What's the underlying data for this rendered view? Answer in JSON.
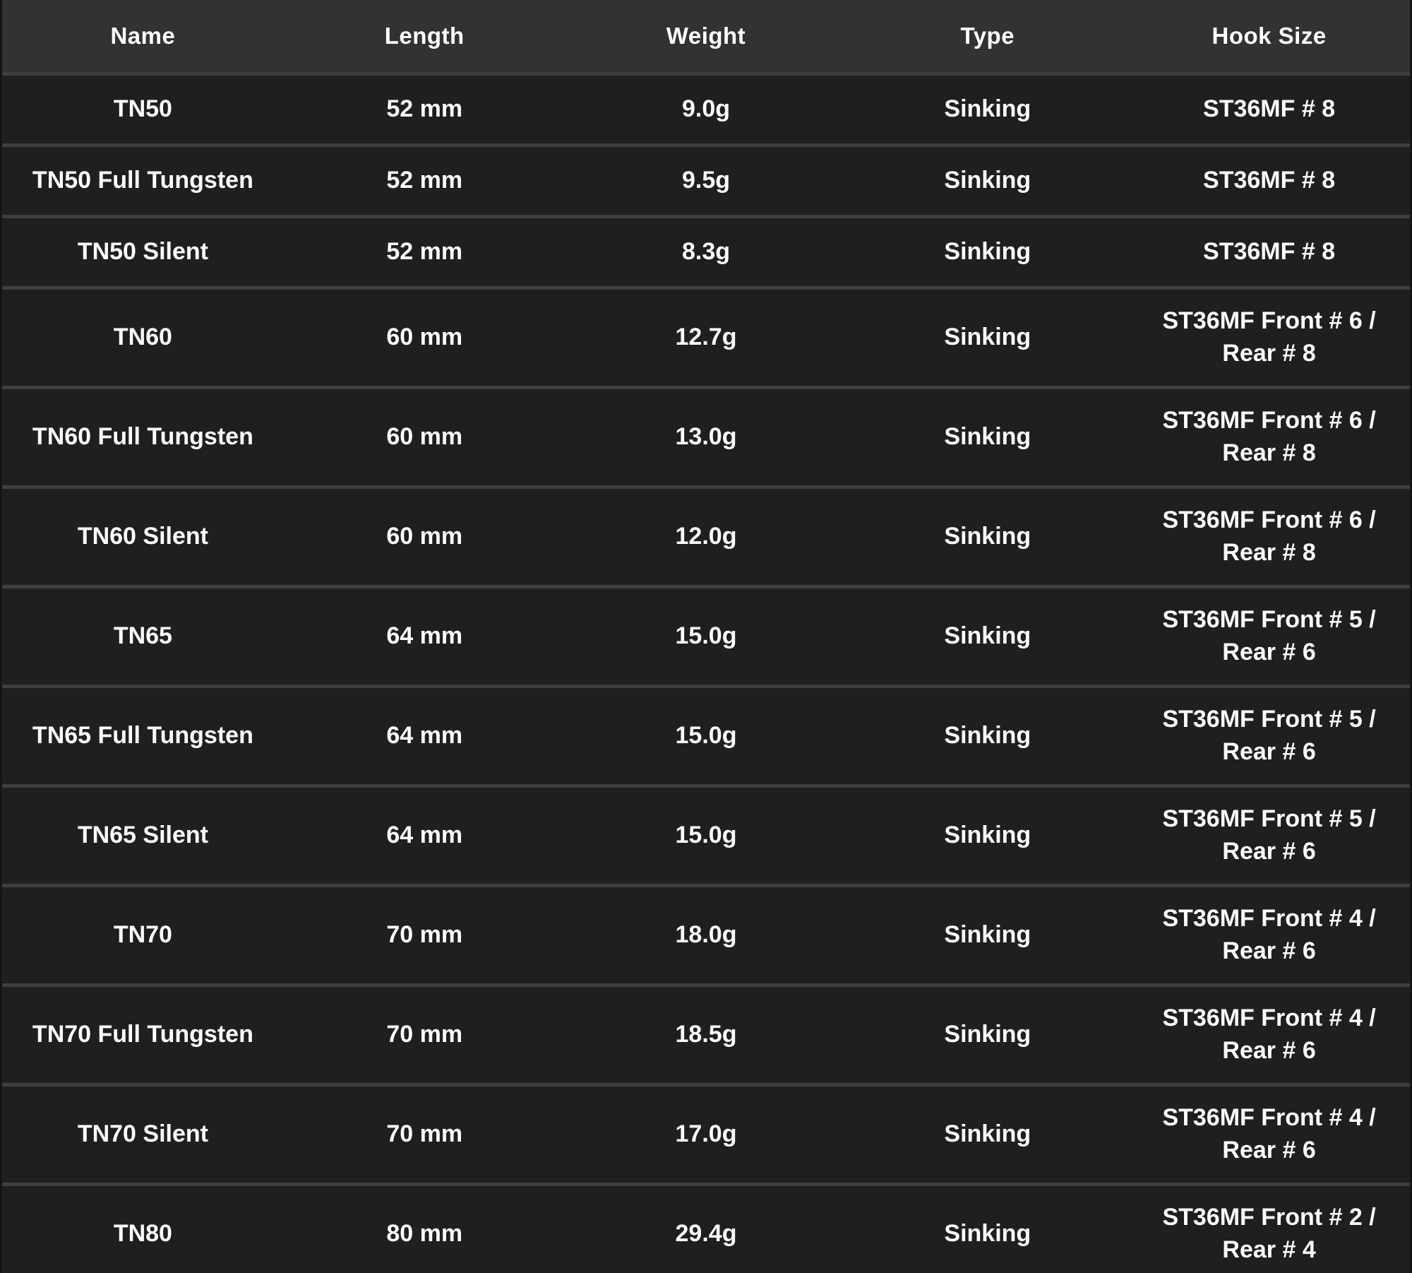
{
  "colors": {
    "header_bg": "#323235",
    "row_bg": "#1f1f22",
    "divider": "#3e3e41",
    "text": "#ffffff",
    "outer_border": "#141416"
  },
  "table": {
    "columns": [
      "Name",
      "Length",
      "Weight",
      "Type",
      "Hook Size"
    ],
    "rows": [
      {
        "name": "TN50",
        "length": "52 mm",
        "weight": "9.0g",
        "type": "Sinking",
        "hook": "ST36MF # 8"
      },
      {
        "name": "TN50 Full Tungsten",
        "length": "52 mm",
        "weight": "9.5g",
        "type": "Sinking",
        "hook": "ST36MF # 8"
      },
      {
        "name": "TN50 Silent",
        "length": "52 mm",
        "weight": "8.3g",
        "type": "Sinking",
        "hook": "ST36MF # 8"
      },
      {
        "name": "TN60",
        "length": "60 mm",
        "weight": "12.7g",
        "type": "Sinking",
        "hook": "ST36MF Front # 6 /\nRear # 8"
      },
      {
        "name": "TN60 Full Tungsten",
        "length": "60 mm",
        "weight": "13.0g",
        "type": "Sinking",
        "hook": "ST36MF Front # 6 /\nRear # 8"
      },
      {
        "name": "TN60 Silent",
        "length": "60 mm",
        "weight": "12.0g",
        "type": "Sinking",
        "hook": "ST36MF Front # 6 /\nRear # 8"
      },
      {
        "name": "TN65",
        "length": "64 mm",
        "weight": "15.0g",
        "type": "Sinking",
        "hook": "ST36MF Front # 5 /\nRear # 6"
      },
      {
        "name": "TN65 Full Tungsten",
        "length": "64 mm",
        "weight": "15.0g",
        "type": "Sinking",
        "hook": "ST36MF Front # 5 /\nRear # 6"
      },
      {
        "name": "TN65 Silent",
        "length": "64 mm",
        "weight": "15.0g",
        "type": "Sinking",
        "hook": "ST36MF Front # 5 /\nRear # 6"
      },
      {
        "name": "TN70",
        "length": "70 mm",
        "weight": "18.0g",
        "type": "Sinking",
        "hook": "ST36MF Front # 4 /\nRear # 6"
      },
      {
        "name": "TN70 Full Tungsten",
        "length": "70 mm",
        "weight": "18.5g",
        "type": "Sinking",
        "hook": "ST36MF Front # 4 /\nRear # 6"
      },
      {
        "name": "TN70 Silent",
        "length": "70 mm",
        "weight": "17.0g",
        "type": "Sinking",
        "hook": "ST36MF Front # 4 /\nRear # 6"
      },
      {
        "name": "TN80",
        "length": "80 mm",
        "weight": "29.4g",
        "type": "Sinking",
        "hook": "ST36MF Front # 2 /\nRear # 4"
      }
    ]
  }
}
